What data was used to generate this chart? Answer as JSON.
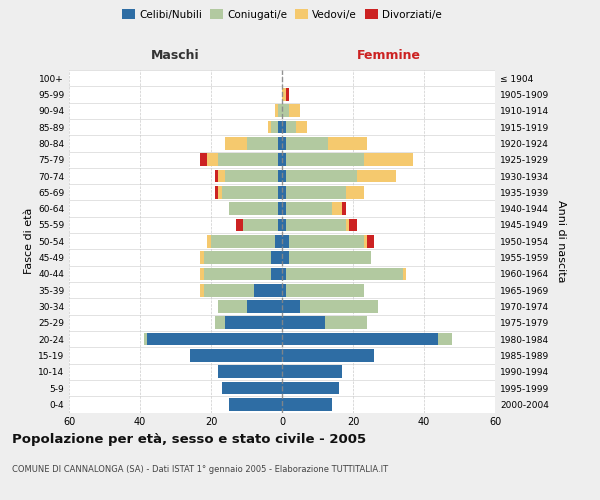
{
  "age_groups": [
    "100+",
    "95-99",
    "90-94",
    "85-89",
    "80-84",
    "75-79",
    "70-74",
    "65-69",
    "60-64",
    "55-59",
    "50-54",
    "45-49",
    "40-44",
    "35-39",
    "30-34",
    "25-29",
    "20-24",
    "15-19",
    "10-14",
    "5-9",
    "0-4"
  ],
  "birth_years": [
    "≤ 1904",
    "1905-1909",
    "1910-1914",
    "1915-1919",
    "1920-1924",
    "1925-1929",
    "1930-1934",
    "1935-1939",
    "1940-1944",
    "1945-1949",
    "1950-1954",
    "1955-1959",
    "1960-1964",
    "1965-1969",
    "1970-1974",
    "1975-1979",
    "1980-1984",
    "1985-1989",
    "1990-1994",
    "1995-1999",
    "2000-2004"
  ],
  "colors": {
    "celibi": "#2e6da4",
    "coniugati": "#b2c9a0",
    "vedovi": "#f5c96e",
    "divorziati": "#cc2222"
  },
  "males": {
    "celibi": [
      0,
      0,
      0,
      1,
      1,
      1,
      1,
      1,
      1,
      1,
      2,
      3,
      3,
      8,
      10,
      16,
      38,
      26,
      18,
      17,
      15
    ],
    "coniugati": [
      0,
      0,
      1,
      2,
      9,
      17,
      15,
      16,
      14,
      10,
      18,
      19,
      19,
      14,
      8,
      3,
      1,
      0,
      0,
      0,
      0
    ],
    "vedovi": [
      0,
      0,
      1,
      1,
      6,
      3,
      2,
      1,
      0,
      0,
      1,
      1,
      1,
      1,
      0,
      0,
      0,
      0,
      0,
      0,
      0
    ],
    "divorziati": [
      0,
      0,
      0,
      0,
      0,
      2,
      1,
      1,
      0,
      2,
      0,
      0,
      0,
      0,
      0,
      0,
      0,
      0,
      0,
      0,
      0
    ]
  },
  "females": {
    "celibi": [
      0,
      0,
      0,
      1,
      1,
      1,
      1,
      1,
      1,
      1,
      2,
      2,
      1,
      1,
      5,
      12,
      44,
      26,
      17,
      16,
      14
    ],
    "coniugati": [
      0,
      0,
      2,
      3,
      12,
      22,
      20,
      17,
      13,
      17,
      21,
      23,
      33,
      22,
      22,
      12,
      4,
      0,
      0,
      0,
      0
    ],
    "vedovi": [
      0,
      1,
      3,
      3,
      11,
      14,
      11,
      5,
      3,
      1,
      1,
      0,
      1,
      0,
      0,
      0,
      0,
      0,
      0,
      0,
      0
    ],
    "divorziati": [
      0,
      1,
      0,
      0,
      0,
      0,
      0,
      0,
      1,
      2,
      2,
      0,
      0,
      0,
      0,
      0,
      0,
      0,
      0,
      0,
      0
    ]
  },
  "xlim": 60,
  "title_main": "Popolazione per età, sesso e stato civile - 2005",
  "title_sub": "COMUNE DI CANNALONGA (SA) - Dati ISTAT 1° gennaio 2005 - Elaborazione TUTTITALIA.IT",
  "ylabel_left": "Fasce di età",
  "ylabel_right": "Anni di nascita",
  "label_maschi": "Maschi",
  "label_femmine": "Femmine",
  "legend_labels": [
    "Celibi/Nubili",
    "Coniugati/e",
    "Vedovi/e",
    "Divorziati/e"
  ],
  "bg_color": "#eeeeee",
  "plot_bg_color": "#ffffff",
  "gridcolor": "#cccccc"
}
